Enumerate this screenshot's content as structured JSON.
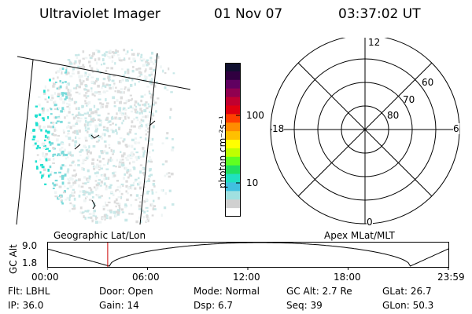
{
  "header": {
    "instrument": "Ultraviolet Imager",
    "date": "01 Nov 07",
    "time": "03:37:02 UT"
  },
  "colorbar": {
    "label": "photon cm⁻²s⁻¹",
    "ticks": [
      "100",
      "10"
    ],
    "colors": [
      "#101030",
      "#300040",
      "#600060",
      "#900050",
      "#c00030",
      "#e00010",
      "#ff4000",
      "#ff8c00",
      "#ffc000",
      "#ffff00",
      "#c0ff00",
      "#60ff20",
      "#20e060",
      "#20e0c0",
      "#40c0e0",
      "#a0e0e0",
      "#d0d0d0",
      "#ffffff"
    ]
  },
  "polar": {
    "mlt_labels": {
      "top": "12",
      "left": "18",
      "right": "6",
      "bottom": "0"
    },
    "lat_labels": [
      "60",
      "70",
      "80"
    ]
  },
  "timeline": {
    "left_title": "Geographic Lat/Lon",
    "right_title": "Apex MLat/MLT",
    "ylabel": "GC Alt",
    "ymax": "9.0",
    "ymin": "1.8",
    "ticks": [
      "00:00",
      "06:00",
      "12:00",
      "18:00",
      "23:59"
    ],
    "current_time_hours": 3.62,
    "marker_color": "#cc0000"
  },
  "status": {
    "filter": "Flt: LBHL",
    "door": "Door: Open",
    "mode": "Mode: Normal",
    "gc_alt": "GC Alt: 2.7 Re",
    "glat": "GLat:  26.7",
    "ip": "IP: 36.0",
    "gain": "Gain: 14",
    "dsp": "Dsp:     6.7",
    "seq": "Seq: 39",
    "glon": "GLon:  50.3"
  }
}
